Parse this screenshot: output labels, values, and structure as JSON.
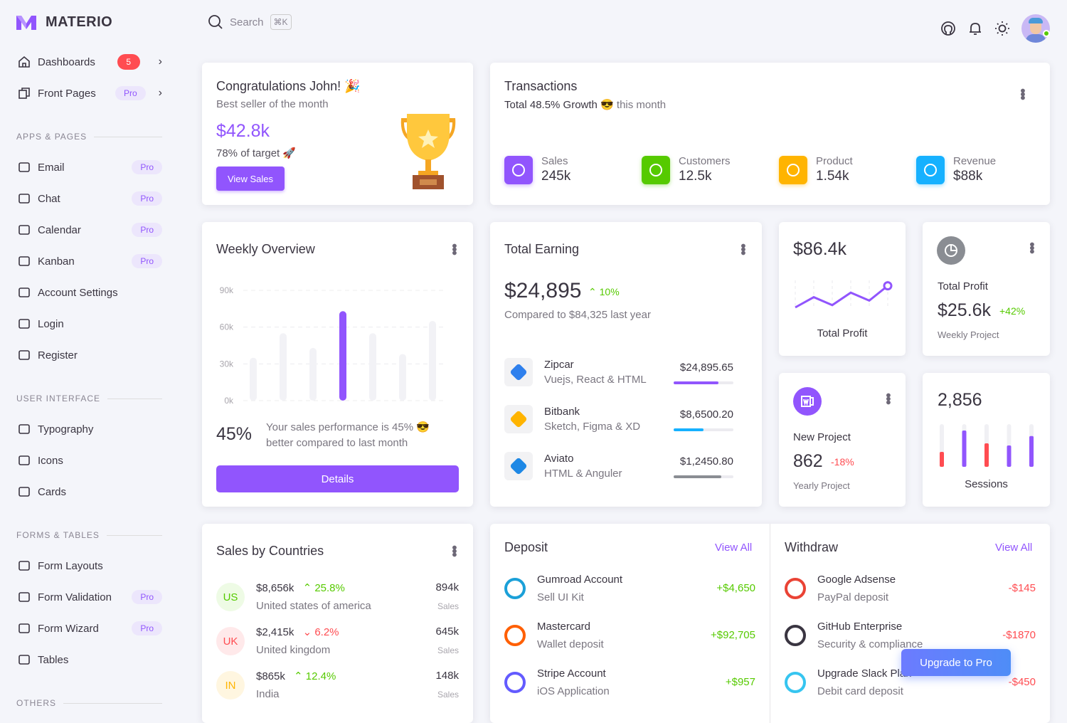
{
  "brand": {
    "name": "MATERIO",
    "color": "#9155fd"
  },
  "header": {
    "search_placeholder": "Search",
    "shortcut": "⌘K"
  },
  "sidebar": {
    "items": [
      {
        "label": "Dashboards",
        "badge": "5"
      },
      {
        "label": "Front Pages",
        "badge": "Pro"
      }
    ],
    "sections": [
      {
        "title": "APPS & PAGES",
        "items": [
          {
            "label": "Email",
            "badge": "Pro"
          },
          {
            "label": "Chat",
            "badge": "Pro"
          },
          {
            "label": "Calendar",
            "badge": "Pro"
          },
          {
            "label": "Kanban",
            "badge": "Pro"
          },
          {
            "label": "Account Settings"
          },
          {
            "label": "Login"
          },
          {
            "label": "Register"
          }
        ]
      },
      {
        "title": "USER INTERFACE",
        "items": [
          {
            "label": "Typography"
          },
          {
            "label": "Icons"
          },
          {
            "label": "Cards"
          }
        ]
      },
      {
        "title": "FORMS & TABLES",
        "items": [
          {
            "label": "Form Layouts"
          },
          {
            "label": "Form Validation",
            "badge": "Pro"
          },
          {
            "label": "Form Wizard",
            "badge": "Pro"
          },
          {
            "label": "Tables"
          }
        ]
      },
      {
        "title": "OTHERS"
      }
    ]
  },
  "congrats": {
    "title": "Congratulations John! 🎉",
    "subtitle": "Best seller of the month",
    "amount": "$42.8k",
    "target": "78% of target 🚀",
    "button": "View Sales"
  },
  "transactions": {
    "title": "Transactions",
    "growth": "Total 48.5% Growth 😎",
    "suffix": "this month",
    "stats": [
      {
        "label": "Sales",
        "value": "245k",
        "color": "#9155fd"
      },
      {
        "label": "Customers",
        "value": "12.5k",
        "color": "#56ca00"
      },
      {
        "label": "Product",
        "value": "1.54k",
        "color": "#ffb400"
      },
      {
        "label": "Revenue",
        "value": "$88k",
        "color": "#16b1ff"
      }
    ]
  },
  "weekly": {
    "title": "Weekly Overview",
    "percent": "45%",
    "text": "Your sales performance is 45% 😎 better compared to last month",
    "button": "Details",
    "chart_data": {
      "type": "bar",
      "yticks": [
        "90k",
        "60k",
        "30k",
        "0k"
      ],
      "ylim": [
        0,
        90000
      ],
      "values": [
        35000,
        55000,
        43000,
        73000,
        55000,
        38000,
        65000
      ],
      "highlight_index": 3,
      "grid": true
    }
  },
  "earning": {
    "title": "Total Earning",
    "amount": "$24,895",
    "change": "10%",
    "compare": "Compared to $84,325 last year",
    "items": [
      {
        "name": "Zipcar",
        "sub": "Vuejs, React & HTML",
        "amount": "$24,895.65",
        "progress": 75,
        "color": "#9155fd"
      },
      {
        "name": "Bitbank",
        "sub": "Sketch, Figma & XD",
        "amount": "$8,6500.20",
        "progress": 50,
        "color": "#16b1ff"
      },
      {
        "name": "Aviato",
        "sub": "HTML & Anguler",
        "amount": "$1,2450.80",
        "progress": 80,
        "color": "#8a8d93"
      }
    ]
  },
  "profit_line": {
    "amount": "$86.4k",
    "label": "Total Profit",
    "chart_data": {
      "type": "line",
      "values": [
        0,
        45,
        10,
        65,
        30,
        95
      ]
    }
  },
  "total_profit": {
    "label": "Total Profit",
    "amount": "$25.6k",
    "change": "+42%",
    "sub": "Weekly Project"
  },
  "new_project": {
    "label": "New Project",
    "amount": "862",
    "change": "-18%",
    "sub": "Yearly Project"
  },
  "sessions": {
    "value": "2,856",
    "label": "Sessions",
    "chart_data": {
      "type": "bar",
      "values": [
        35,
        85,
        55,
        50,
        72
      ],
      "colors": [
        "#ff4c51",
        "#9155fd",
        "#ff4c51",
        "#9155fd",
        "#9155fd"
      ]
    }
  },
  "countries": {
    "title": "Sales by Countries",
    "rows": [
      {
        "code": "US",
        "amount": "$8,656k",
        "change": "25.8%",
        "up": true,
        "country": "United states of america",
        "sales": "894k",
        "sales_label": "Sales",
        "bg": "#eefbe5",
        "fg": "#56ca00"
      },
      {
        "code": "UK",
        "amount": "$2,415k",
        "change": "6.2%",
        "up": false,
        "country": "United kingdom",
        "sales": "645k",
        "sales_label": "Sales",
        "bg": "#ffe9ea",
        "fg": "#ff4c51"
      },
      {
        "code": "IN",
        "amount": "$865k",
        "change": "12.4%",
        "up": true,
        "country": "India",
        "sales": "148k",
        "sales_label": "Sales",
        "bg": "#fff6e0",
        "fg": "#ffb400"
      }
    ]
  },
  "deposit": {
    "title": "Deposit",
    "view_all": "View All",
    "rows": [
      {
        "name": "Gumroad Account",
        "sub": "Sell UI Kit",
        "amount": "+$4,650"
      },
      {
        "name": "Mastercard",
        "sub": "Wallet deposit",
        "amount": "+$92,705"
      },
      {
        "name": "Stripe Account",
        "sub": "iOS Application",
        "amount": "+$957"
      }
    ]
  },
  "withdraw": {
    "title": "Withdraw",
    "view_all": "View All",
    "rows": [
      {
        "name": "Google Adsense",
        "sub": "PayPal deposit",
        "amount": "-$145"
      },
      {
        "name": "GitHub Enterprise",
        "sub": "Security & compliance",
        "amount": "-$1870"
      },
      {
        "name": "Upgrade Slack Plan",
        "sub": "Debit card deposit",
        "amount": "-$450"
      }
    ]
  },
  "upgrade": {
    "label": "Upgrade to Pro"
  }
}
